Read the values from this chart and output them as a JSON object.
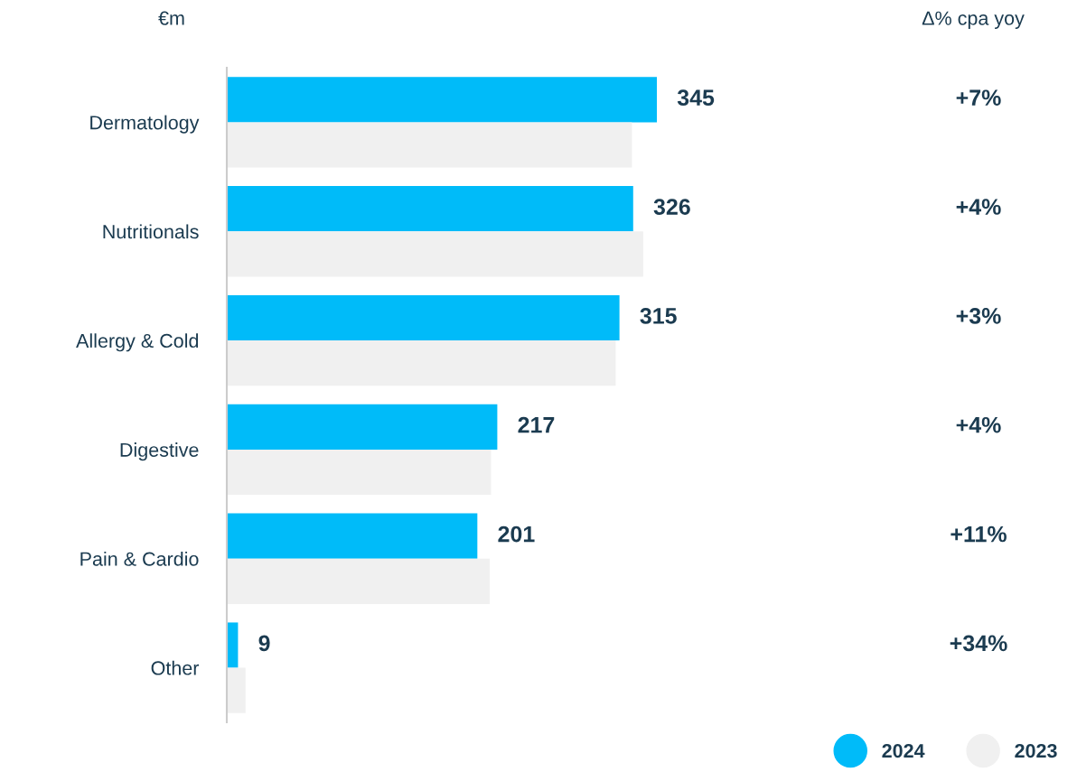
{
  "chart_data": {
    "type": "bar",
    "orientation": "horizontal",
    "ylabel": "€m",
    "categories": [
      "Dermatology",
      "Nutritionals",
      "Allergy & Cold",
      "Digestive",
      "Pain & Cardio",
      "Other"
    ],
    "series": [
      {
        "name": "2024",
        "color": "#00bbf9",
        "values": [
          345,
          326,
          315,
          217,
          201,
          9
        ],
        "value_labels": [
          "345",
          "326",
          "315",
          "217",
          "201",
          "9"
        ]
      },
      {
        "name": "2023",
        "color": "#f0f0f0",
        "values": [
          325,
          334,
          312,
          212,
          211,
          15
        ]
      }
    ],
    "tick_labels": "y",
    "grid": false,
    "legend": "bottom right",
    "annotations": [
      "Δ% cpa yoy",
      "+7%",
      "+4%",
      "+3%",
      "+4%",
      "+11%",
      "+34%"
    ]
  }
}
